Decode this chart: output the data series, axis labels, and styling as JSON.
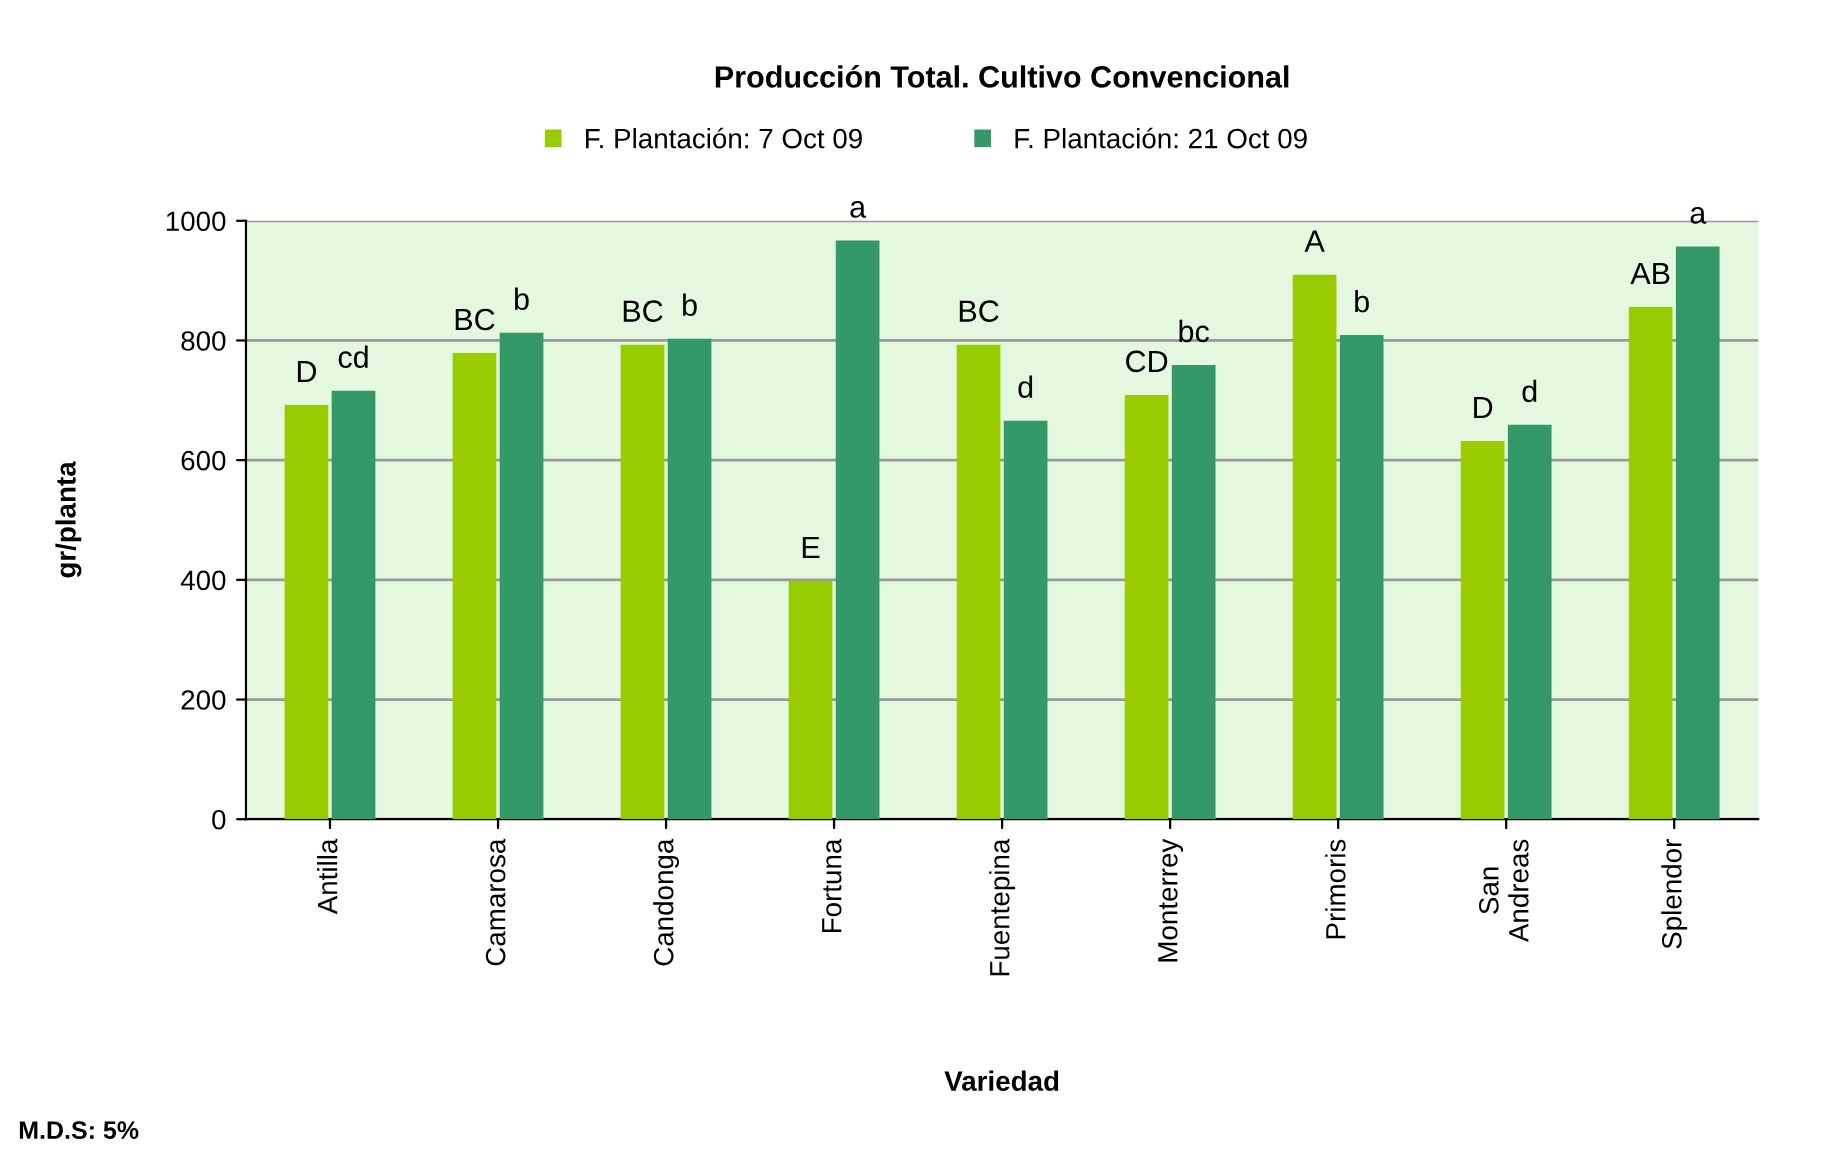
{
  "chart_data": {
    "type": "bar",
    "title": "Producción Total. Cultivo Convencional",
    "xlabel": "Variedad",
    "ylabel": "gr/planta",
    "categories": [
      "Antilla",
      "Camarosa",
      "Candonga",
      "Fortuna",
      "Fuentepina",
      "Monterrey",
      "Primoris",
      "San\nAndreas",
      "Splendor"
    ],
    "series": [
      {
        "name": "F. Plantación: 7 Oct 09",
        "color": "#99cc00",
        "values": [
          692,
          779,
          793,
          398,
          793,
          709,
          910,
          632,
          856
        ],
        "value_labels": [
          "D",
          "BC",
          "BC",
          "E",
          "BC",
          "CD",
          "A",
          "D",
          "AB"
        ]
      },
      {
        "name": "F. Plantación: 21 Oct 09",
        "color": "#339966",
        "values": [
          716,
          813,
          803,
          967,
          666,
          759,
          809,
          659,
          957
        ],
        "value_labels": [
          "cd",
          "b",
          "b",
          "a",
          "d",
          "bc",
          "b",
          "d",
          "a"
        ]
      }
    ],
    "ylim": [
      0,
      1000
    ],
    "yticks": [
      0,
      200,
      400,
      600,
      800,
      1000
    ],
    "grid": "y",
    "legend": "top",
    "annotations": [
      "M.D.S: 5%"
    ]
  }
}
